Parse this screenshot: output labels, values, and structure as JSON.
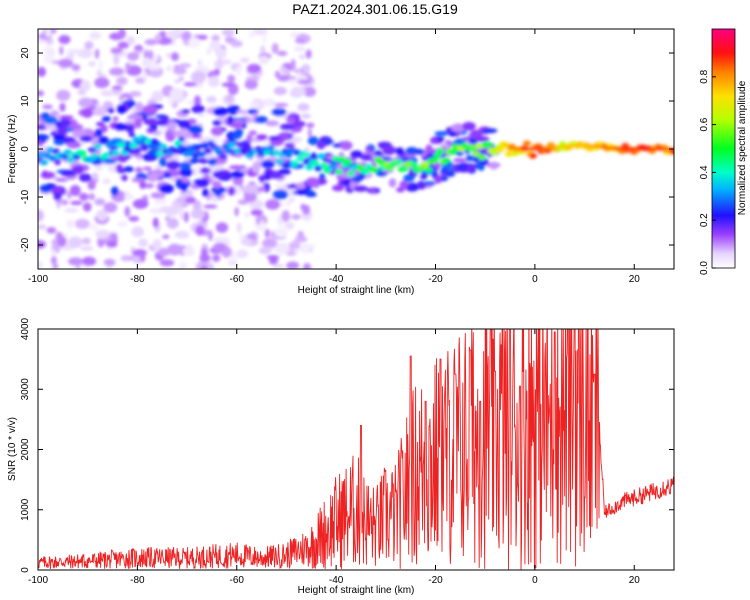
{
  "title": "PAZ1.2024.301.06.15.G19",
  "chart_data": [
    {
      "type": "heatmap",
      "xlabel": "Height of straight line (km)",
      "ylabel": "Frequency (Hz)",
      "xlim": [
        -100,
        28
      ],
      "ylim": [
        -25,
        25
      ],
      "xticks": [
        "-100",
        "-80",
        "-60",
        "-40",
        "-20",
        "0",
        "20"
      ],
      "yticks": [
        "-20",
        "-10",
        "0",
        "10",
        "20"
      ],
      "colorbar": {
        "label": "Normalized spectral amplitude",
        "range": [
          0,
          1
        ],
        "ticks": [
          "0.0",
          "0.2",
          "0.4",
          "0.6",
          "0.8"
        ],
        "colormap": [
          "#ffffff",
          "#e8d8ff",
          "#8a2be2",
          "#1020ff",
          "#00e5ff",
          "#00ff40",
          "#ffff00",
          "#ff8000",
          "#ff0000",
          "#ff0080"
        ]
      },
      "ridge": [
        {
          "x": -100,
          "f": -1.5,
          "a": 0.25
        },
        {
          "x": -90,
          "f": -1.0,
          "a": 0.35
        },
        {
          "x": -80,
          "f": 1.0,
          "a": 0.3
        },
        {
          "x": -70,
          "f": -0.5,
          "a": 0.3
        },
        {
          "x": -60,
          "f": 0.0,
          "a": 0.25
        },
        {
          "x": -50,
          "f": -1.5,
          "a": 0.3
        },
        {
          "x": -42,
          "f": -3.0,
          "a": 0.35
        },
        {
          "x": -36,
          "f": -4.0,
          "a": 0.45
        },
        {
          "x": -30,
          "f": -3.5,
          "a": 0.5
        },
        {
          "x": -25,
          "f": -4.0,
          "a": 0.55
        },
        {
          "x": -20,
          "f": -2.5,
          "a": 0.5
        },
        {
          "x": -15,
          "f": 0.5,
          "a": 0.55
        },
        {
          "x": -10,
          "f": -0.5,
          "a": 0.55
        },
        {
          "x": -5,
          "f": 0.0,
          "a": 0.75
        },
        {
          "x": 0,
          "f": 0.0,
          "a": 0.85
        },
        {
          "x": 5,
          "f": 0.5,
          "a": 0.7
        },
        {
          "x": 10,
          "f": 0.8,
          "a": 0.7
        },
        {
          "x": 15,
          "f": 0.2,
          "a": 0.8
        },
        {
          "x": 20,
          "f": 0.0,
          "a": 0.85
        },
        {
          "x": 28,
          "f": 0.0,
          "a": 0.8
        }
      ]
    },
    {
      "type": "line",
      "xlabel": "Height of straight line (km)",
      "ylabel": "SNR (10 * v/v)",
      "xlim": [
        -100,
        28
      ],
      "ylim": [
        0,
        4000
      ],
      "xticks": [
        "-100",
        "-80",
        "-60",
        "-40",
        "-20",
        "0",
        "20"
      ],
      "yticks": [
        "0",
        "1000",
        "2000",
        "3000",
        "4000"
      ],
      "color": "#ee2222",
      "series": [
        {
          "x": [
            -100,
            -90,
            -80,
            -70,
            -60,
            -55,
            -50,
            -45,
            -40,
            -38,
            -36,
            -34,
            -32,
            -30,
            -28,
            -26,
            -24,
            -22,
            -20,
            -18,
            -16,
            -14,
            -12,
            -10,
            -8,
            -6,
            -4,
            -2,
            0,
            2,
            4,
            6,
            8,
            10,
            12,
            13,
            14,
            16,
            18,
            20,
            22,
            24,
            26,
            28
          ],
          "y": [
            120,
            150,
            200,
            200,
            250,
            200,
            250,
            400,
            800,
            900,
            1000,
            800,
            700,
            900,
            900,
            1300,
            1600,
            1700,
            1800,
            1900,
            2000,
            2100,
            2200,
            2300,
            2400,
            2400,
            2500,
            2600,
            2650,
            2500,
            2300,
            2600,
            2700,
            2550,
            2400,
            2300,
            950,
            1050,
            1150,
            1200,
            1250,
            1300,
            1380,
            1400
          ],
          "peaks": [
            {
              "x": -35,
              "y": 2400
            },
            {
              "x": -25,
              "y": 3550
            },
            {
              "x": -22,
              "y": 2800
            },
            {
              "x": -19,
              "y": 3500
            },
            {
              "x": -16,
              "y": 3250
            },
            {
              "x": -13,
              "y": 3650
            },
            {
              "x": -11,
              "y": 2800
            },
            {
              "x": -8,
              "y": 3300
            },
            {
              "x": -3,
              "y": 3050
            },
            {
              "x": 4,
              "y": 3950
            },
            {
              "x": 8,
              "y": 4000
            },
            {
              "x": 12,
              "y": 3250
            }
          ]
        }
      ]
    }
  ]
}
